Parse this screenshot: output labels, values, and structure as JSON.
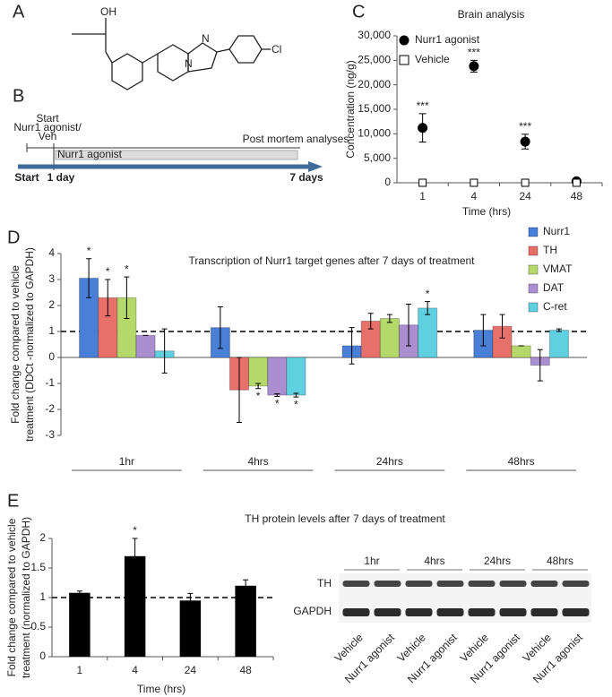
{
  "panel_labels": [
    "A",
    "B",
    "C",
    "D",
    "E"
  ],
  "structure": {
    "atoms": [
      "OH",
      "N",
      "N",
      "Cl"
    ]
  },
  "timeline": {
    "start_label": [
      "Start",
      "Nurr1 agonist/",
      "Veh"
    ],
    "end_label": "Post mortem analyses",
    "treatment": "Nurr1 agonist",
    "axis_labels": [
      "Start",
      "1 day",
      "7 days"
    ]
  },
  "chart_data": [
    {
      "type": "scatter",
      "title": "Brain analysis",
      "xlabel": "Time (hrs)",
      "ylabel": [
        "Concentration (ng/g)"
      ],
      "categories": [
        "1",
        "4",
        "24",
        "48"
      ],
      "ylim": [
        0,
        30000
      ],
      "yticks": [
        0,
        {
          "value": 5000,
          "label": "5,000"
        },
        {
          "value": 10000,
          "label": "10,000"
        },
        {
          "value": 15000,
          "label": "15,000"
        },
        {
          "value": 20000,
          "label": "20,000"
        },
        {
          "value": 25000,
          "label": "25,000"
        },
        {
          "value": 30000,
          "label": "30,000"
        }
      ],
      "legend": "top-right",
      "series": [
        {
          "name": "Nurr1 agonist",
          "color": "#000000",
          "marker": "circle",
          "values": [
            11200,
            23800,
            8400,
            300
          ],
          "errors": [
            2900,
            1200,
            1500,
            200
          ],
          "annotations": [
            "***",
            "***",
            "***",
            null
          ]
        },
        {
          "name": "Vehicle",
          "color": "#ffffff",
          "marker": "square",
          "values": [
            0,
            0,
            0,
            0
          ]
        }
      ]
    },
    {
      "type": "bar",
      "title": "Transcription of Nurr1 target genes after 7 days of treatment",
      "ylabel": [
        "Fold change compared to vehicle",
        "treatment (DDCt -normalized to GAPDH)"
      ],
      "categories": [
        "1hr",
        "4hrs",
        "24hrs",
        "48hrs"
      ],
      "ylim": [
        -3,
        4
      ],
      "yticks": [
        -3,
        -2,
        -1,
        0,
        1,
        2,
        3,
        4
      ],
      "reference_line": 1,
      "legend": "top-right",
      "series": [
        {
          "name": "Nurr1",
          "color": "#4a7fd8",
          "values": [
            3.05,
            1.15,
            0.45,
            1.05
          ],
          "errors": [
            0.75,
            0.8,
            0.7,
            0.6
          ],
          "annotations": [
            "*",
            null,
            null,
            null
          ]
        },
        {
          "name": "TH",
          "color": "#e8706a",
          "values": [
            2.3,
            -1.25,
            1.4,
            1.2
          ],
          "errors": [
            0.7,
            1.25,
            0.3,
            0.45
          ],
          "annotations": [
            "*",
            null,
            null,
            null
          ]
        },
        {
          "name": "VMAT",
          "color": "#b4d96a",
          "values": [
            2.3,
            -1.1,
            1.5,
            0.45
          ],
          "errors": [
            0.8,
            0.1,
            0.15,
            0
          ],
          "annotations": [
            "*",
            "*",
            null,
            null
          ]
        },
        {
          "name": "DAT",
          "color": "#a98fcf",
          "values": [
            0.85,
            -1.45,
            1.25,
            -0.3
          ],
          "errors": [
            0,
            0.05,
            0.8,
            0.6
          ],
          "annotations": [
            null,
            "*",
            null,
            null
          ]
        },
        {
          "name": "C-ret",
          "color": "#5fd0e0",
          "values": [
            0.25,
            -1.45,
            1.9,
            1.05
          ],
          "errors": [
            0.85,
            0.07,
            0.25,
            0.05
          ],
          "annotations": [
            null,
            "*",
            "*",
            null
          ]
        }
      ]
    },
    {
      "type": "bar",
      "title": "TH protein levels after 7 days of treatment",
      "xlabel": "Time (hrs)",
      "ylabel": [
        "Fold change compared to vehicle",
        "treatment (normalized to GAPDH)"
      ],
      "categories": [
        "1",
        "4",
        "24",
        "48"
      ],
      "ylim": [
        0,
        2
      ],
      "yticks": [
        0,
        0.5,
        1,
        1.5,
        2
      ],
      "reference_line": 1,
      "series": [
        {
          "color": "#000000",
          "values": [
            1.08,
            1.7,
            0.95,
            1.2
          ],
          "errors": [
            0.03,
            0.3,
            0.12,
            0.1
          ],
          "annotations": [
            null,
            "*",
            null,
            null
          ]
        }
      ]
    }
  ],
  "blot": {
    "timepoints": [
      "1hr",
      "4hrs",
      "24hrs",
      "48hrs"
    ],
    "proteins": [
      "TH",
      "GAPDH"
    ],
    "lanes": [
      "Vehicle",
      "Nurr1 agonist",
      "Vehicle",
      "Nurr1 agonist",
      "Vehicle",
      "Nurr1 agonist",
      "Vehicle",
      "Nurr1 agonist"
    ]
  }
}
